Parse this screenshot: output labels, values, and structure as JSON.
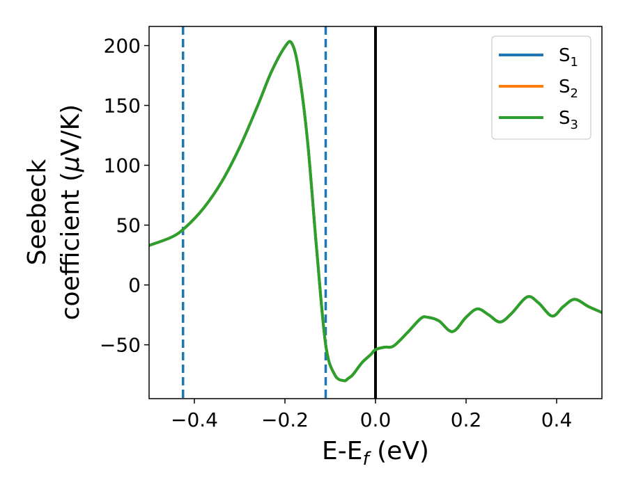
{
  "chart_data": {
    "type": "line",
    "title": "",
    "xlabel": "E-E",
    "xlabel_sub": "f",
    "xlabel_unit": " (eV)",
    "ylabel_line1": "Seebeck",
    "ylabel_line2": "coefficient  (",
    "ylabel_mu": "μ",
    "ylabel_unit": "V/K)",
    "xlim": [
      -0.5,
      0.5
    ],
    "ylim": [
      -95,
      216
    ],
    "xticks": [
      -0.4,
      -0.2,
      0.0,
      0.2,
      0.4
    ],
    "xtick_labels": [
      "−0.4",
      "−0.2",
      "0.0",
      "0.2",
      "0.4"
    ],
    "yticks": [
      -50,
      0,
      50,
      100,
      150,
      200
    ],
    "ytick_labels": [
      "−50",
      "0",
      "50",
      "100",
      "150",
      "200"
    ],
    "grid": false,
    "legend_position": "top-right",
    "vlines": [
      {
        "x": -0.425,
        "style": "dashed",
        "color": "#1f77b4"
      },
      {
        "x": -0.11,
        "style": "dashed",
        "color": "#1f77b4"
      },
      {
        "x": 0.0,
        "style": "solid",
        "color": "#000000"
      }
    ],
    "x": [
      -0.5,
      -0.45,
      -0.42,
      -0.38,
      -0.34,
      -0.3,
      -0.26,
      -0.23,
      -0.2,
      -0.185,
      -0.17,
      -0.15,
      -0.13,
      -0.11,
      -0.09,
      -0.07,
      -0.06,
      -0.05,
      -0.03,
      -0.01,
      0.0,
      0.02,
      0.04,
      0.07,
      0.1,
      0.115,
      0.14,
      0.17,
      0.2,
      0.225,
      0.25,
      0.275,
      0.3,
      0.335,
      0.36,
      0.39,
      0.415,
      0.44,
      0.47,
      0.5
    ],
    "series": [
      {
        "name": "S",
        "sub": "1",
        "color": "#1f77b4",
        "values": [
          33,
          40,
          48,
          64,
          86,
          115,
          150,
          178,
          199,
          202,
          180,
          120,
          30,
          -50,
          -75,
          -80,
          -78,
          -75,
          -65,
          -58,
          -54,
          -52,
          -51,
          -40,
          -28,
          -27,
          -30,
          -39,
          -27,
          -20,
          -25,
          -31,
          -24,
          -10,
          -15,
          -26,
          -18,
          -12,
          -18,
          -23
        ]
      },
      {
        "name": "S",
        "sub": "2",
        "color": "#ff7f0e",
        "values": [
          33,
          40,
          48,
          64,
          86,
          115,
          150,
          178,
          199,
          202,
          180,
          120,
          30,
          -50,
          -75,
          -80,
          -78,
          -75,
          -65,
          -58,
          -54,
          -52,
          -51,
          -40,
          -28,
          -27,
          -30,
          -39,
          -27,
          -20,
          -25,
          -31,
          -24,
          -10,
          -15,
          -26,
          -18,
          -12,
          -18,
          -23
        ]
      },
      {
        "name": "S",
        "sub": "3",
        "color": "#2ca02c",
        "values": [
          33,
          40,
          48,
          64,
          86,
          115,
          150,
          178,
          199,
          202,
          180,
          120,
          30,
          -50,
          -75,
          -80,
          -78,
          -75,
          -65,
          -58,
          -54,
          -52,
          -51,
          -40,
          -28,
          -27,
          -30,
          -39,
          -27,
          -20,
          -25,
          -31,
          -24,
          -10,
          -15,
          -26,
          -18,
          -12,
          -18,
          -23
        ]
      }
    ]
  }
}
